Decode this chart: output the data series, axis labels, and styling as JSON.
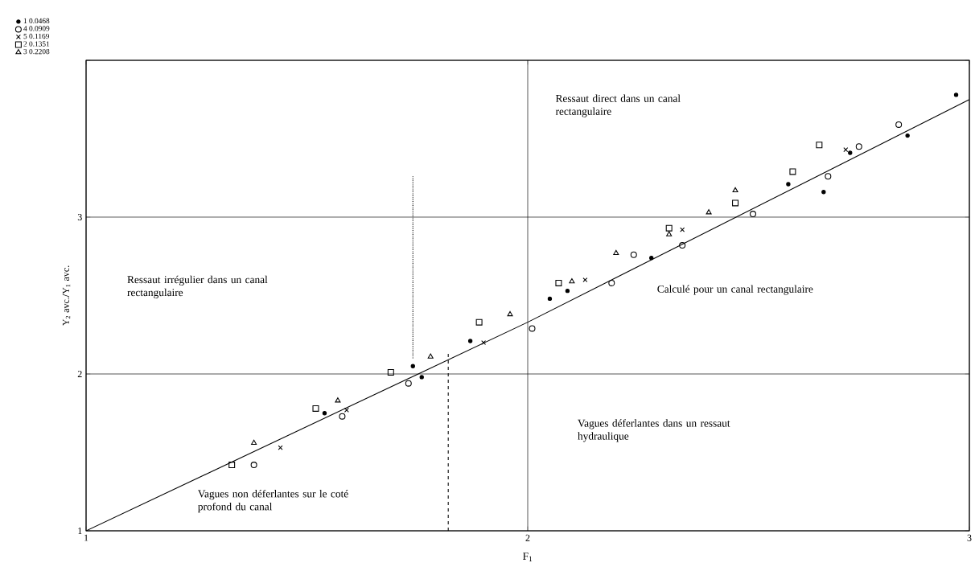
{
  "chart_data": {
    "type": "scatter",
    "xlabel": "F$_{1}$",
    "ylabel": "Y$_{2}$ avc./Y$_{1}$ avc.",
    "xlim": [
      1,
      3
    ],
    "ylim": [
      1,
      4
    ],
    "xticks": [
      1,
      2,
      3
    ],
    "yticks": [
      1,
      2,
      3,
      {
        "value": 4,
        "label": null
      }
    ],
    "grid": true,
    "legend": "top left",
    "series": [
      {
        "name": "1 0.0468",
        "color": "#000000",
        "marker": "circle",
        "x": [
          1.54,
          1.74,
          1.76,
          1.87,
          2.05,
          2.09,
          2.28,
          2.59,
          2.67,
          2.73,
          2.86,
          2.97
        ],
        "values": [
          1.75,
          2.05,
          1.98,
          2.21,
          2.48,
          2.53,
          2.74,
          3.21,
          3.16,
          3.41,
          3.52,
          3.78
        ]
      },
      {
        "name": "4 0.0909",
        "color": "#000000",
        "marker": "circle",
        "x": [
          1.38,
          1.58,
          1.73,
          2.01,
          2.19,
          2.24,
          2.35,
          2.51,
          2.68,
          2.75,
          2.84
        ],
        "values": [
          1.42,
          1.73,
          1.94,
          2.29,
          2.58,
          2.76,
          2.82,
          3.02,
          3.26,
          3.45,
          3.59
        ]
      },
      {
        "name": "5 0.1169",
        "color": "#000000",
        "marker": "cross",
        "x": [
          1.44,
          1.59,
          1.9,
          2.13,
          2.35,
          2.72
        ],
        "values": [
          1.53,
          1.77,
          2.2,
          2.6,
          2.92,
          3.43
        ]
      },
      {
        "name": "2 0.1351",
        "color": "#000000",
        "marker": "square",
        "x": [
          1.33,
          1.52,
          1.69,
          1.89,
          2.07,
          2.32,
          2.47,
          2.6,
          2.66
        ],
        "values": [
          1.42,
          1.78,
          2.01,
          2.33,
          2.58,
          2.93,
          3.09,
          3.29,
          3.46
        ]
      },
      {
        "name": "3 0.2208",
        "color": "#000000",
        "marker": "triangle",
        "x": [
          1.38,
          1.57,
          1.78,
          1.96,
          2.1,
          2.2,
          2.32,
          2.41,
          2.47
        ],
        "values": [
          1.56,
          1.83,
          2.11,
          2.38,
          2.59,
          2.77,
          2.89,
          3.03,
          3.17
        ]
      },
      {
        "type": "line",
        "color": "#000000",
        "line_style": "solid",
        "x": [
          1,
          2,
          3
        ],
        "values": [
          1,
          2.33,
          3.75
        ]
      },
      {
        "type": "line",
        "color": "#000000",
        "line_style": "dotted",
        "x": [
          1.74,
          1.74
        ],
        "values": [
          2.1,
          3.26
        ]
      },
      {
        "type": "line",
        "color": "#000000",
        "line_style": "dashed",
        "x": [
          1.82,
          1.82
        ],
        "values": [
          1,
          2.13
        ]
      }
    ],
    "annotations": [
      "Ressaut direct dans un canal rectangulaire",
      "Ressaut irrégulier dans un canal rectangulaire",
      "Calculé pour un canal rectangulaire",
      "Vagues déferlantes dans un ressaut hydraulique",
      "Vagues non déferlantes sur le coté profond du canal"
    ]
  }
}
